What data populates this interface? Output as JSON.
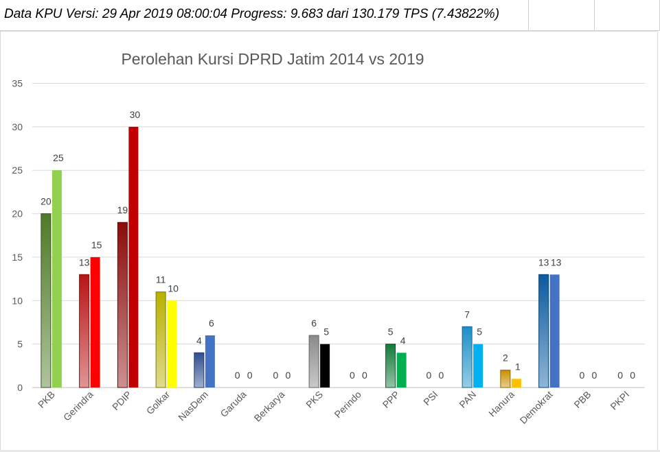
{
  "header": {
    "progress_text": "Data KPU Versi: 29 Apr 2019 08:00:04 Progress: 9.683 dari 130.179 TPS (7.43822%)"
  },
  "chart_data": {
    "type": "bar",
    "title": "Perolehan Kursi DPRD Jatim 2014 vs 2019",
    "xlabel": "",
    "ylabel": "",
    "ylim": [
      0,
      35
    ],
    "yticks": [
      0,
      5,
      10,
      15,
      20,
      25,
      30,
      35
    ],
    "grid": true,
    "legend": "none",
    "categories": [
      "PKB",
      "Gerindra",
      "PDIP",
      "Golkar",
      "NasDem",
      "Garuda",
      "Berkarya",
      "PKS",
      "Perindo",
      "PPP",
      "PSI",
      "PAN",
      "Hanura",
      "Demokrat",
      "PBB",
      "PKPI"
    ],
    "series": [
      {
        "values": [
          20,
          13,
          19,
          11,
          4,
          0,
          0,
          6,
          0,
          5,
          0,
          7,
          2,
          13,
          0,
          0
        ]
      },
      {
        "values": [
          25,
          15,
          30,
          10,
          6,
          0,
          0,
          5,
          0,
          4,
          0,
          5,
          1,
          13,
          0,
          0
        ]
      }
    ],
    "colors": {
      "2014": [
        "#4f7a28",
        "#b81414",
        "#8c0a0a",
        "#b8b000",
        "#2f4f8f",
        "#999999",
        "#999999",
        "#8a8a8a",
        "#999999",
        "#127a3a",
        "#999999",
        "#1a8fc7",
        "#c98f00",
        "#0b5aa0",
        "#999999",
        "#999999"
      ],
      "2019": [
        "#92d050",
        "#ff0000",
        "#c00000",
        "#ffff00",
        "#4472c4",
        "#999999",
        "#999999",
        "#000000",
        "#999999",
        "#00b050",
        "#999999",
        "#00b0f0",
        "#ffc000",
        "#4472c4",
        "#999999",
        "#999999"
      ]
    }
  }
}
